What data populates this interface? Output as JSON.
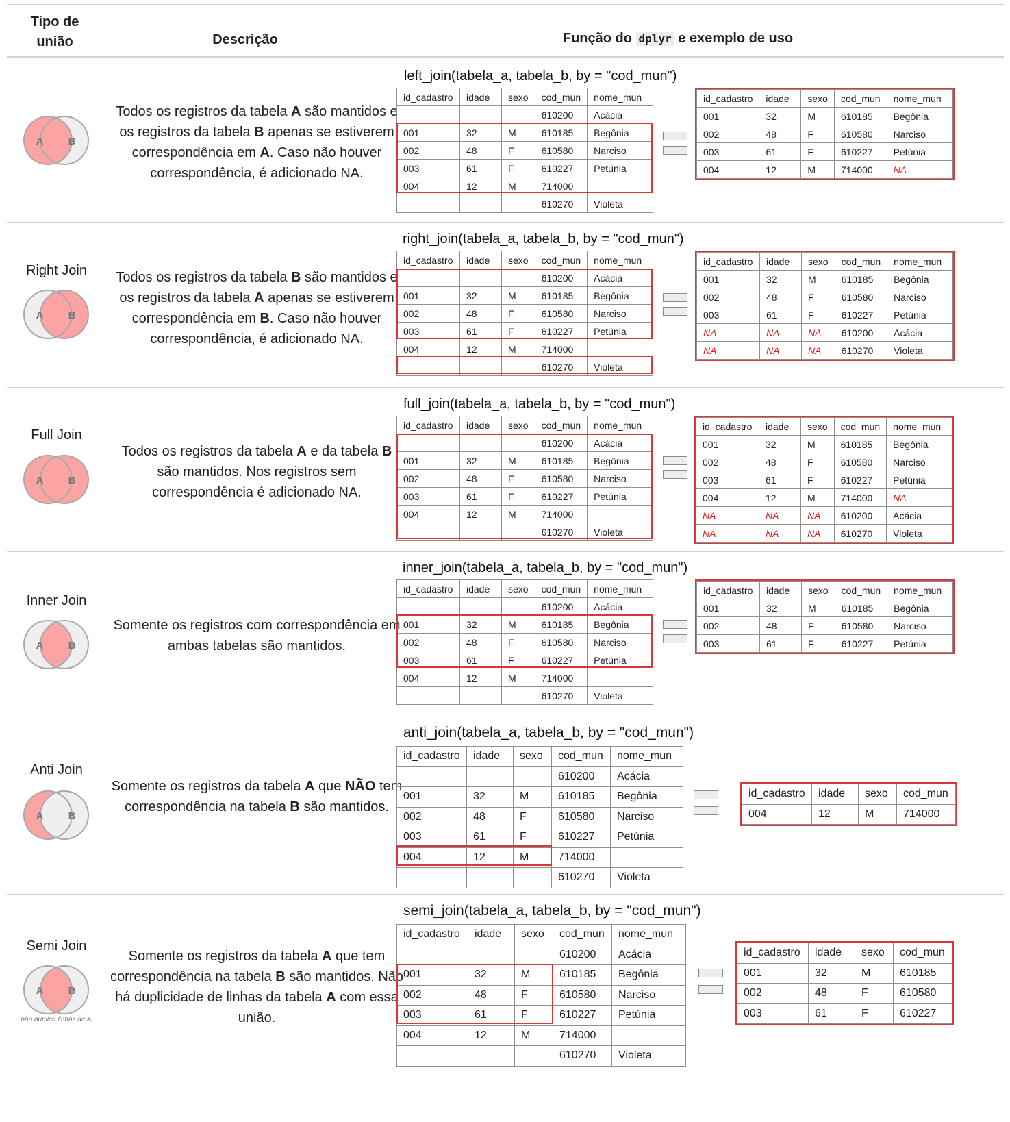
{
  "header": {
    "col1_line1": "Tipo de",
    "col1_line2": "união",
    "col2": "Descrição",
    "col3_pre": "Função do",
    "col3_code": "dplyr",
    "col3_post": "e exemplo de uso"
  },
  "colors": {
    "highlight": "#d43a3a",
    "venn_fill": "#fca3a3",
    "venn_empty": "#efefef",
    "na_text": "#e01b1b"
  },
  "table_a_columns": [
    "id_cadastro",
    "idade",
    "sexo",
    "cod_mun",
    "nome_mun"
  ],
  "table_a_rows": [
    [
      "",
      "",
      "",
      "610200",
      "Acácia"
    ],
    [
      "001",
      "32",
      "M",
      "610185",
      "Begônia"
    ],
    [
      "002",
      "48",
      "F",
      "610580",
      "Narciso"
    ],
    [
      "003",
      "61",
      "F",
      "610227",
      "Petúnia"
    ],
    [
      "004",
      "12",
      "M",
      "714000",
      ""
    ],
    [
      "",
      "",
      "",
      "610270",
      "Violeta"
    ]
  ],
  "joins": [
    {
      "label": "",
      "desc": [
        [
          "t",
          "Todos os registros da tabela "
        ],
        [
          "b",
          "A"
        ],
        [
          "t",
          " são mantidos e os registros da tabela "
        ],
        [
          "b",
          "B"
        ],
        [
          "t",
          " apenas se estiverem correspondência em "
        ],
        [
          "b",
          "A"
        ],
        [
          "t",
          ". Caso não houver correspondência, é adicionado NA."
        ]
      ],
      "function": "left_join(tabela_a, tabela_b, by = \"cod_mun\")",
      "result_columns": [
        "id_cadastro",
        "idade",
        "sexo",
        "cod_mun",
        "nome_mun"
      ],
      "result_rows": [
        [
          "001",
          "32",
          "M",
          "610185",
          "Begônia"
        ],
        [
          "002",
          "48",
          "F",
          "610580",
          "Narciso"
        ],
        [
          "003",
          "61",
          "F",
          "610227",
          "Petúnia"
        ],
        [
          "004",
          "12",
          "M",
          "714000",
          "NA"
        ]
      ]
    },
    {
      "label": "Right Join",
      "desc": [
        [
          "t",
          "Todos os registros da tabela "
        ],
        [
          "b",
          "B"
        ],
        [
          "t",
          " são mantidos e os registros da tabela "
        ],
        [
          "b",
          "A"
        ],
        [
          "t",
          " apenas se estiverem correspondência em "
        ],
        [
          "b",
          "B"
        ],
        [
          "t",
          ". Caso não houver correspondência, é adicionado NA."
        ]
      ],
      "function": "right_join(tabela_a, tabela_b, by = \"cod_mun\")",
      "result_columns": [
        "id_cadastro",
        "idade",
        "sexo",
        "cod_mun",
        "nome_mun"
      ],
      "result_rows": [
        [
          "001",
          "32",
          "M",
          "610185",
          "Begônia"
        ],
        [
          "002",
          "48",
          "F",
          "610580",
          "Narciso"
        ],
        [
          "003",
          "61",
          "F",
          "610227",
          "Petúnia"
        ],
        [
          "NA",
          "NA",
          "NA",
          "610200",
          "Acácia"
        ],
        [
          "NA",
          "NA",
          "NA",
          "610270",
          "Violeta"
        ]
      ]
    },
    {
      "label": "Full Join",
      "desc": [
        [
          "t",
          "Todos os registros da tabela "
        ],
        [
          "b",
          "A"
        ],
        [
          "t",
          " e da tabela "
        ],
        [
          "b",
          "B"
        ],
        [
          "t",
          " são mantidos. Nos registros sem correspondência é adicionado NA."
        ]
      ],
      "function": "full_join(tabela_a, tabela_b, by = \"cod_mun\")",
      "result_columns": [
        "id_cadastro",
        "idade",
        "sexo",
        "cod_mun",
        "nome_mun"
      ],
      "result_rows": [
        [
          "001",
          "32",
          "M",
          "610185",
          "Begônia"
        ],
        [
          "002",
          "48",
          "F",
          "610580",
          "Narciso"
        ],
        [
          "003",
          "61",
          "F",
          "610227",
          "Petúnia"
        ],
        [
          "004",
          "12",
          "M",
          "714000",
          "NA"
        ],
        [
          "NA",
          "NA",
          "NA",
          "610200",
          "Acácia"
        ],
        [
          "NA",
          "NA",
          "NA",
          "610270",
          "Violeta"
        ]
      ]
    },
    {
      "label": "Inner Join",
      "desc": [
        [
          "t",
          "Somente os registros com correspondência em ambas tabelas são mantidos."
        ]
      ],
      "function": "inner_join(tabela_a, tabela_b, by = \"cod_mun\")",
      "result_columns": [
        "id_cadastro",
        "idade",
        "sexo",
        "cod_mun",
        "nome_mun"
      ],
      "result_rows": [
        [
          "001",
          "32",
          "M",
          "610185",
          "Begônia"
        ],
        [
          "002",
          "48",
          "F",
          "610580",
          "Narciso"
        ],
        [
          "003",
          "61",
          "F",
          "610227",
          "Petúnia"
        ]
      ]
    },
    {
      "label": "Anti Join",
      "desc": [
        [
          "t",
          "Somente os registros da tabela "
        ],
        [
          "b",
          "A"
        ],
        [
          "t",
          " que "
        ],
        [
          "b",
          "NÃO"
        ],
        [
          "t",
          " tem correspondência na tabela "
        ],
        [
          "b",
          "B"
        ],
        [
          "t",
          " são mantidos."
        ]
      ],
      "function": "anti_join(tabela_a, tabela_b, by = \"cod_mun\")",
      "result_columns": [
        "id_cadastro",
        "idade",
        "sexo",
        "cod_mun"
      ],
      "result_rows": [
        [
          "004",
          "12",
          "M",
          "714000"
        ]
      ]
    },
    {
      "label": "Semi Join",
      "desc": [
        [
          "t",
          "Somente os registros da tabela "
        ],
        [
          "b",
          "A"
        ],
        [
          "t",
          " que tem correspondência na tabela "
        ],
        [
          "b",
          "B"
        ],
        [
          "t",
          " são mantidos. Não há duplicidade de linhas da tabela "
        ],
        [
          "b",
          "A"
        ],
        [
          "t",
          " com essa união."
        ]
      ],
      "function": "semi_join(tabela_a, tabela_b, by = \"cod_mun\")",
      "note": "não duplica linhas de A",
      "result_columns": [
        "id_cadastro",
        "idade",
        "sexo",
        "cod_mun"
      ],
      "result_rows": [
        [
          "001",
          "32",
          "M",
          "610185"
        ],
        [
          "002",
          "48",
          "F",
          "610580"
        ],
        [
          "003",
          "61",
          "F",
          "610227"
        ]
      ]
    }
  ]
}
